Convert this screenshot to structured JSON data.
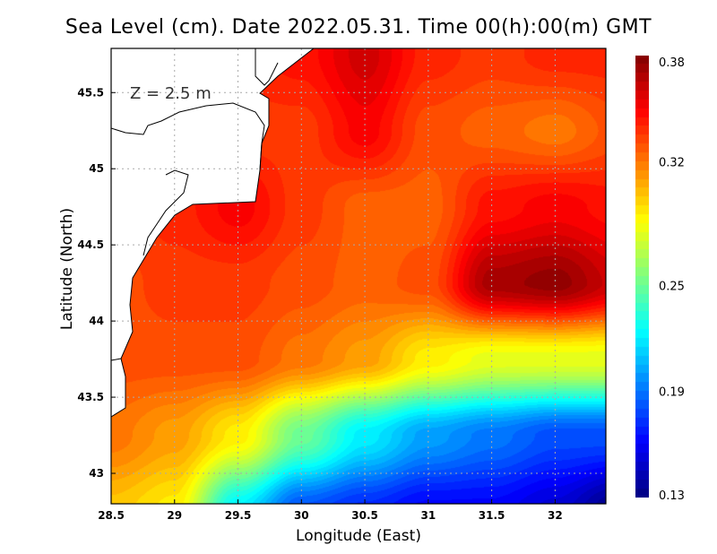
{
  "chart_data": {
    "type": "heatmap",
    "title": "Sea Level (cm). Date 2022.05.31. Time 00(h):00(m) GMT",
    "xlabel": "Longitude (East)",
    "ylabel": "Latitude (North)",
    "annotation": "Z = 2.5 m",
    "xlim": [
      28.5,
      32.4
    ],
    "ylim": [
      42.8,
      45.79
    ],
    "xticks": [
      "28.5",
      "29",
      "29.5",
      "30",
      "30.5",
      "31",
      "31.5",
      "32"
    ],
    "xtick_values": [
      28.5,
      29,
      29.5,
      30,
      30.5,
      31,
      31.5,
      32
    ],
    "yticks": [
      "43",
      "43.5",
      "44",
      "44.5",
      "45",
      "45.5"
    ],
    "ytick_values": [
      43,
      43.5,
      44,
      44.5,
      45,
      45.5
    ],
    "grid": true,
    "colorbar": {
      "min": 0.13,
      "max": 0.38,
      "tick_labels": [
        "0.38",
        "0.32",
        "0.25",
        "0.19",
        "0.13"
      ],
      "tick_values": [
        0.38,
        0.32,
        0.25,
        0.19,
        0.13
      ],
      "placement": "right"
    },
    "grid_lon": [
      28.5,
      29,
      29.5,
      30,
      30.5,
      31,
      31.5,
      32,
      32.5
    ],
    "grid_lat": [
      42.75,
      43.25,
      43.75,
      44.25,
      44.75,
      45.25,
      45.75
    ],
    "values": [
      [
        0.3,
        0.29,
        0.22,
        0.18,
        0.17,
        0.16,
        0.16,
        0.15,
        0.13
      ],
      [
        0.32,
        0.31,
        0.29,
        0.25,
        0.22,
        0.2,
        0.19,
        0.18,
        0.18
      ],
      [
        0.33,
        0.33,
        0.33,
        0.32,
        0.31,
        0.29,
        0.28,
        0.28,
        0.28
      ],
      [
        0.33,
        0.335,
        0.335,
        0.33,
        0.325,
        0.33,
        0.37,
        0.375,
        0.36
      ],
      [
        0.335,
        0.34,
        0.35,
        0.335,
        0.325,
        0.325,
        0.345,
        0.35,
        0.345
      ],
      [
        0.335,
        0.335,
        0.335,
        0.335,
        0.35,
        0.33,
        0.325,
        0.32,
        0.33
      ],
      [
        0.34,
        0.34,
        0.34,
        0.345,
        0.36,
        0.34,
        0.335,
        0.34,
        0.34
      ]
    ],
    "colors": [
      "#00007f",
      "#0000ff",
      "#0080ff",
      "#00ffff",
      "#80ff80",
      "#ffff00",
      "#ff8000",
      "#ff0000",
      "#7f0000"
    ]
  }
}
